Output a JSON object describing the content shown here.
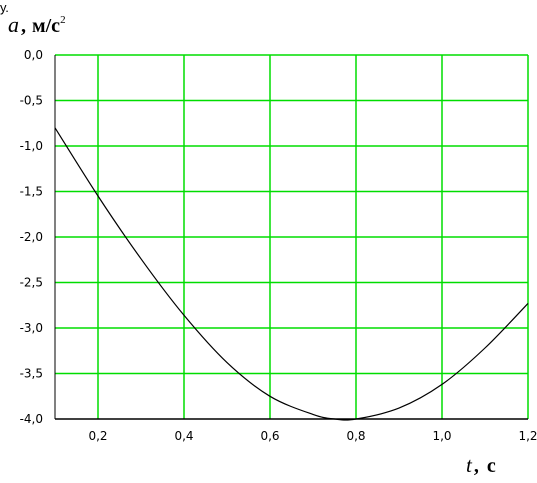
{
  "corner_fragment": "у.",
  "chart_data": {
    "type": "line",
    "title": "",
    "ylabel": {
      "symbol": "a",
      "unit": "м/с",
      "unit_superscript": "2"
    },
    "xlabel": {
      "symbol": "t",
      "separator": ",",
      "unit": "с"
    },
    "xlim": [
      0.1,
      1.2
    ],
    "ylim": [
      -4.0,
      0.0
    ],
    "x_ticks": [
      0.2,
      0.4,
      0.6,
      0.8,
      1.0,
      1.2
    ],
    "x_tick_labels": [
      "0,2",
      "0,4",
      "0,6",
      "0,8",
      "1,0",
      "1,2"
    ],
    "y_ticks": [
      0.0,
      -0.5,
      -1.0,
      -1.5,
      -2.0,
      -2.5,
      -3.0,
      -3.5,
      -4.0
    ],
    "y_tick_labels": [
      "0,0",
      "-0,5",
      "-1,0",
      "-1,5",
      "-2,0",
      "-2,5",
      "-3,0",
      "-3,5",
      "-4,0"
    ],
    "grid": true,
    "grid_color": "#00dd00",
    "line_color": "#000000",
    "series": [
      {
        "x": [
          0.1,
          0.2,
          0.3,
          0.4,
          0.5,
          0.6,
          0.7,
          0.75,
          0.8,
          0.9,
          1.0,
          1.1,
          1.2
        ],
        "y": [
          -0.8,
          -1.55,
          -2.24,
          -2.86,
          -3.38,
          -3.75,
          -3.95,
          -4.0,
          -4.0,
          -3.88,
          -3.62,
          -3.22,
          -2.73
        ]
      }
    ]
  }
}
